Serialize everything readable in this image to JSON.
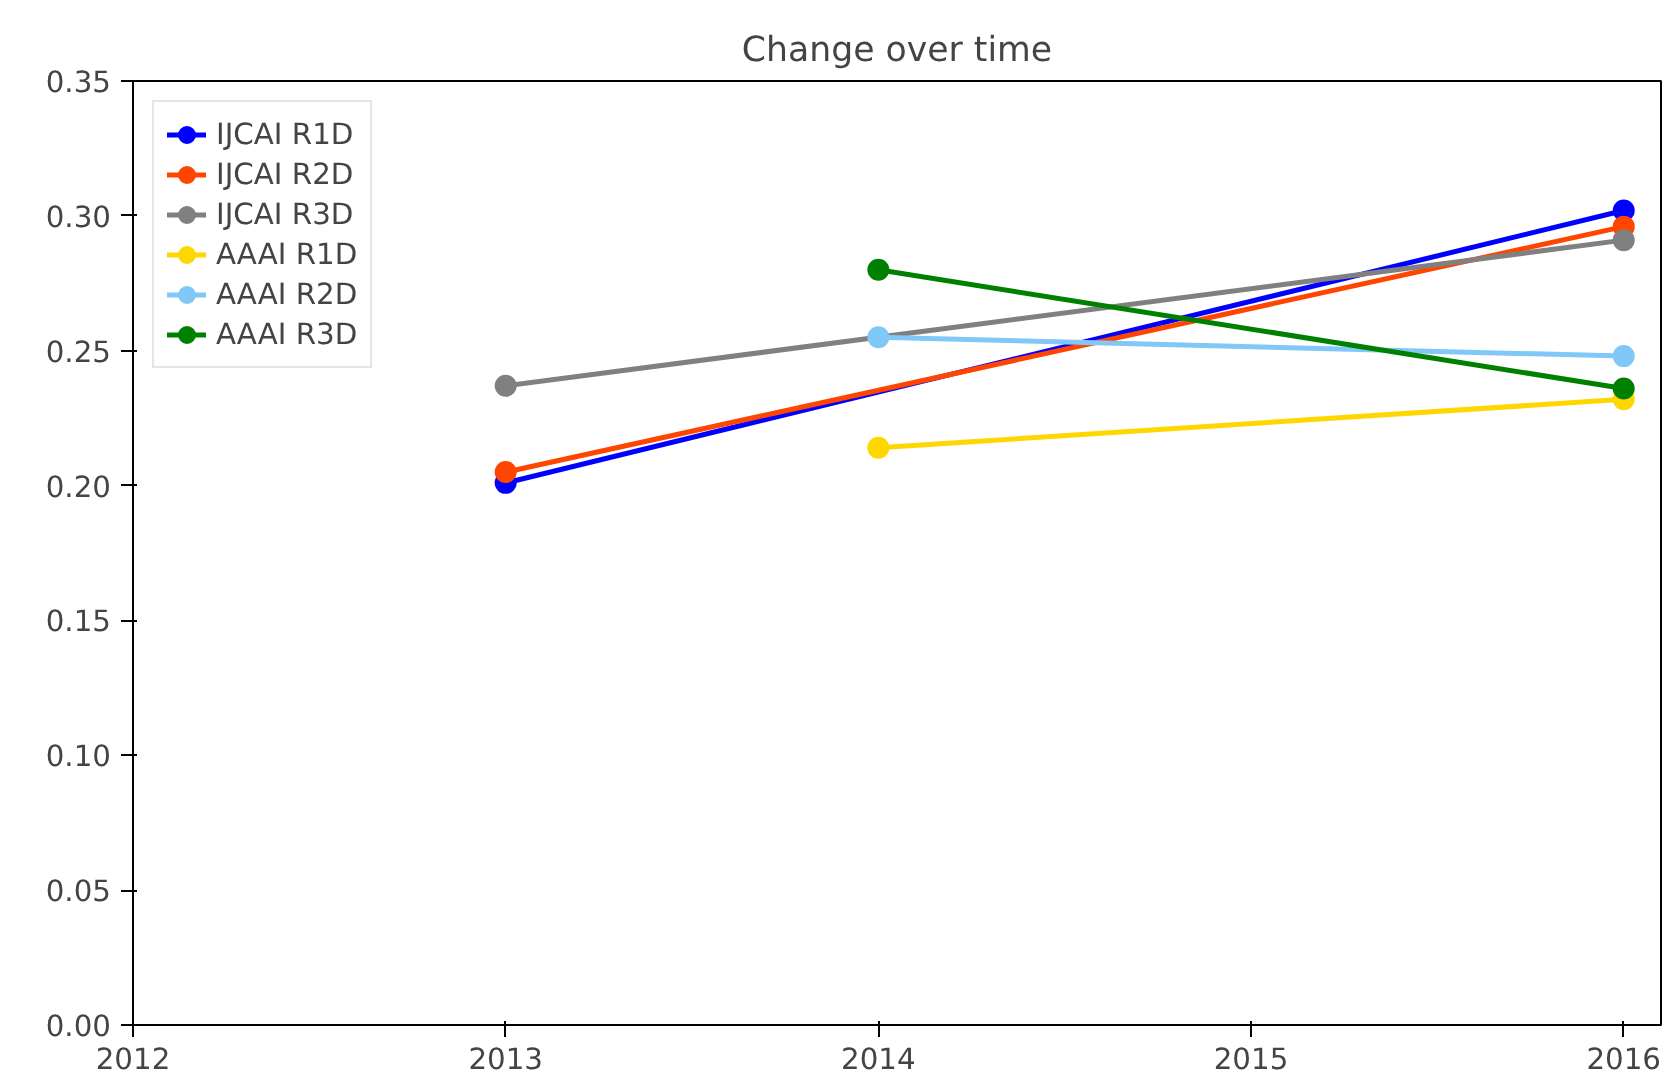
{
  "chart_data": {
    "type": "line",
    "title": "Change over time",
    "xlim": [
      2012,
      2016.1
    ],
    "xticks": [
      2012,
      2013,
      2014,
      2015,
      2016
    ],
    "ylim": [
      0,
      0.35
    ],
    "yticks": [
      {
        "value": 0,
        "label": "0.00"
      },
      {
        "value": 0.05,
        "label": "0.05"
      },
      {
        "value": 0.1,
        "label": "0.10"
      },
      {
        "value": 0.15,
        "label": "0.15"
      },
      {
        "value": 0.2,
        "label": "0.20"
      },
      {
        "value": 0.25,
        "label": "0.25"
      },
      {
        "value": 0.3,
        "label": "0.30"
      },
      {
        "value": 0.35,
        "label": "0.35"
      }
    ],
    "grid": false,
    "legend": "top left",
    "marker": "circle",
    "line_style": "solid",
    "series": [
      {
        "name": "IJCAI R1D",
        "color": "#0000ff",
        "x": [
          2013,
          2016
        ],
        "values": [
          0.201,
          0.302
        ]
      },
      {
        "name": "IJCAI R2D",
        "color": "#ff4500",
        "x": [
          2013,
          2016
        ],
        "values": [
          0.205,
          0.296
        ]
      },
      {
        "name": "IJCAI R3D",
        "color": "#808080",
        "x": [
          2013,
          2016
        ],
        "values": [
          0.237,
          0.291
        ]
      },
      {
        "name": "AAAI R1D",
        "color": "#ffd700",
        "x": [
          2014,
          2016
        ],
        "values": [
          0.214,
          0.232
        ]
      },
      {
        "name": "AAAI R2D",
        "color": "#7fc8f8",
        "x": [
          2014,
          2016
        ],
        "values": [
          0.255,
          0.248
        ]
      },
      {
        "name": "AAAI R3D",
        "color": "#008000",
        "x": [
          2014,
          2016
        ],
        "values": [
          0.28,
          0.236
        ]
      }
    ]
  }
}
